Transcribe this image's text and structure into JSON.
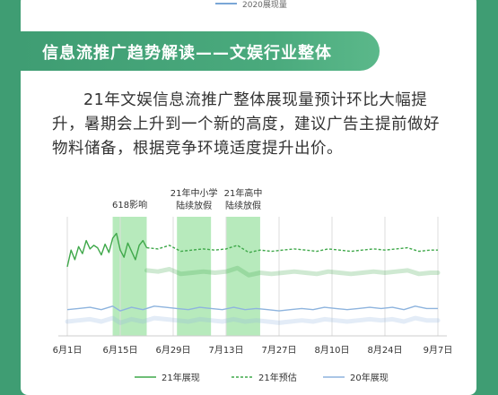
{
  "top_legend": {
    "label": "2020展现量",
    "color": "#7aa6d6"
  },
  "banner": {
    "title": "信息流推广趋势解读——文娱行业整体"
  },
  "paragraph": "21年文娱信息流推广整体展现量预计环比大幅提升，暑期会上升到一个新的高度，建议广告主提前做好物料储备，根据竞争环境适度提升出价。",
  "chart_data": {
    "type": "line",
    "x_tick_labels": [
      "6月1日",
      "6月15日",
      "6月29日",
      "7月13日",
      "7月27日",
      "8月10日",
      "8月24日",
      "9月7日"
    ],
    "x_range_days": [
      0,
      98
    ],
    "tick_days": [
      0,
      14,
      28,
      42,
      56,
      70,
      84,
      98
    ],
    "ylim": [
      0,
      100
    ],
    "grid": "vertical",
    "legend_position": "bottom",
    "highlights": [
      {
        "label": "618影响",
        "start_day": 12,
        "end_day": 21
      },
      {
        "label_line1": "21年中小学",
        "label_line2": "陆续放假",
        "start_day": 29,
        "end_day": 38
      },
      {
        "label_line1": "21年高中",
        "label_line2": "陆续放假",
        "start_day": 42,
        "end_day": 51
      }
    ],
    "series": [
      {
        "name": "21年展现",
        "style": "solid",
        "color": "#3fa84a",
        "x": [
          0,
          1,
          2,
          3,
          4,
          5,
          6,
          7,
          8,
          9,
          10,
          11,
          12,
          13,
          14,
          15,
          16,
          17,
          18,
          19,
          20,
          21
        ],
        "y": [
          58,
          72,
          64,
          75,
          69,
          80,
          73,
          76,
          74,
          68,
          77,
          70,
          82,
          86,
          72,
          66,
          78,
          71,
          64,
          76,
          80,
          74
        ]
      },
      {
        "name": "21年预估",
        "style": "dashed",
        "color": "#3fa84a",
        "x": [
          21,
          24,
          27,
          30,
          33,
          36,
          39,
          42,
          45,
          48,
          51,
          54,
          57,
          60,
          63,
          66,
          69,
          72,
          75,
          78,
          81,
          84,
          87,
          90,
          93,
          96,
          98
        ],
        "y": [
          74,
          73,
          76,
          71,
          72,
          73,
          72,
          73,
          76,
          70,
          72,
          71,
          72,
          73,
          72,
          71,
          73,
          72,
          71,
          72,
          73,
          72,
          73,
          74,
          71,
          72,
          72
        ],
        "shadow_y": [
          55,
          54,
          56,
          52,
          53,
          54,
          53,
          54,
          57,
          51,
          53,
          52,
          53,
          54,
          53,
          52,
          54,
          53,
          52,
          53,
          54,
          53,
          54,
          55,
          52,
          53,
          53
        ]
      },
      {
        "name": "20年展现",
        "style": "solid",
        "color": "#8eb4de",
        "x": [
          0,
          3,
          6,
          9,
          12,
          14,
          17,
          20,
          23,
          26,
          29,
          32,
          35,
          38,
          41,
          44,
          47,
          50,
          53,
          56,
          59,
          62,
          65,
          68,
          71,
          74,
          77,
          80,
          83,
          86,
          89,
          92,
          95,
          98
        ],
        "y": [
          22,
          23,
          24,
          22,
          25,
          21,
          24,
          22,
          25,
          24,
          23,
          22,
          24,
          23,
          22,
          24,
          22,
          23,
          22,
          21,
          22,
          23,
          22,
          24,
          23,
          22,
          23,
          24,
          23,
          24,
          22,
          25,
          23,
          23
        ],
        "shadow_y": [
          12,
          13,
          14,
          12,
          15,
          11,
          14,
          12,
          15,
          14,
          13,
          12,
          14,
          13,
          12,
          14,
          12,
          13,
          12,
          11,
          12,
          13,
          12,
          14,
          13,
          12,
          13,
          14,
          13,
          14,
          12,
          15,
          13,
          13
        ]
      }
    ]
  }
}
